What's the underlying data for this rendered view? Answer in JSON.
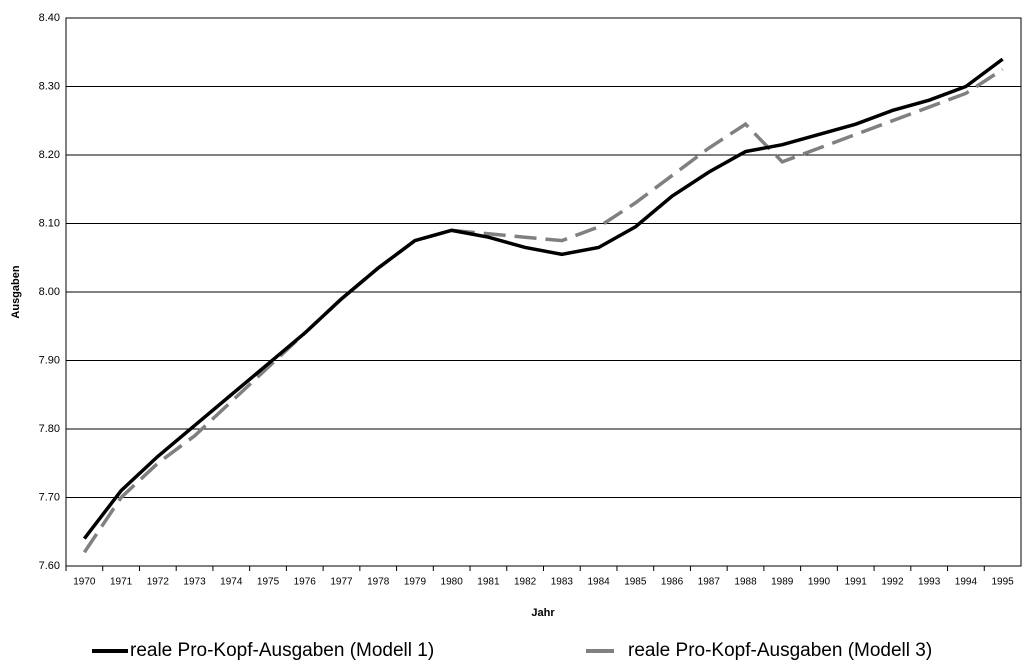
{
  "chart_data": {
    "type": "line",
    "x_label": "Jahr",
    "y_label": "Ausgaben",
    "categories": [
      "1970",
      "1971",
      "1972",
      "1973",
      "1974",
      "1975",
      "1976",
      "1977",
      "1978",
      "1979",
      "1980",
      "1981",
      "1982",
      "1983",
      "1984",
      "1985",
      "1986",
      "1987",
      "1988",
      "1989",
      "1990",
      "1991",
      "1992",
      "1993",
      "1994",
      "1995"
    ],
    "series": [
      {
        "name": "reale Pro-Kopf-Ausgaben (Modell 1)",
        "color": "#000000",
        "dash": "solid",
        "values": [
          7.64,
          7.71,
          7.76,
          7.805,
          7.85,
          7.895,
          7.94,
          7.99,
          8.035,
          8.075,
          8.09,
          8.08,
          8.065,
          8.055,
          8.065,
          8.095,
          8.14,
          8.175,
          8.205,
          8.215,
          8.23,
          8.245,
          8.265,
          8.28,
          8.3,
          8.34
        ]
      },
      {
        "name": "reale Pro-Kopf-Ausgaben (Modell 3)",
        "color": "#808080",
        "dash": "dashed",
        "values": [
          7.62,
          7.7,
          7.75,
          7.79,
          7.84,
          7.89,
          7.94,
          7.99,
          8.035,
          8.075,
          8.09,
          8.085,
          8.08,
          8.075,
          8.095,
          8.13,
          8.17,
          8.21,
          8.245,
          8.19,
          8.21,
          8.23,
          8.25,
          8.27,
          8.29,
          8.325
        ]
      }
    ],
    "ylim": [
      7.6,
      8.4
    ],
    "yticks": [
      {
        "value": 7.6,
        "label": "7.60"
      },
      {
        "value": 7.7,
        "label": "7.70"
      },
      {
        "value": 7.8,
        "label": "7.80"
      },
      {
        "value": 7.9,
        "label": "7.90"
      },
      {
        "value": 8.0,
        "label": "8.00"
      },
      {
        "value": 8.1,
        "label": "8.10"
      },
      {
        "value": 8.2,
        "label": "8.20"
      },
      {
        "value": 8.3,
        "label": "8.30"
      },
      {
        "value": 8.4,
        "label": "8.40"
      }
    ],
    "grid": true,
    "legend": "bottom"
  }
}
